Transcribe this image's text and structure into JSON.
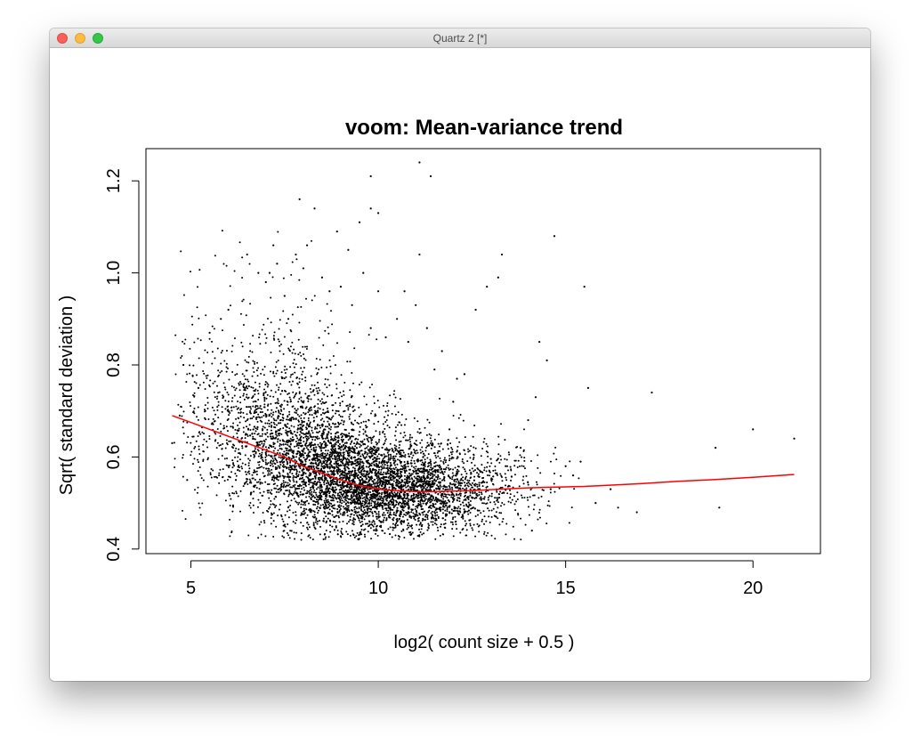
{
  "window": {
    "title": "Quartz 2 [*]",
    "buttons": [
      "close",
      "minimize",
      "zoom"
    ]
  },
  "colors": {
    "points": "#000000",
    "trend": "#ff0000",
    "frame": "#000000"
  },
  "chart_data": {
    "type": "scatter",
    "title": "voom: Mean-variance trend",
    "xlabel": "log2( count size + 0.5 )",
    "ylabel": "Sqrt( standard deviation )",
    "xlim": [
      3.8,
      21.8
    ],
    "ylim": [
      0.39,
      1.27
    ],
    "xticks": [
      5,
      10,
      15,
      20
    ],
    "yticks": [
      0.4,
      0.6,
      0.8,
      1.0,
      1.2
    ],
    "ytick_labels": [
      "0.4",
      "0.6",
      "0.8",
      "1.0",
      "1.2"
    ],
    "grid": false,
    "series": [
      {
        "kind": "points",
        "points": [
          [
            4.5,
            0.63
          ],
          [
            4.7,
            0.69
          ],
          [
            4.8,
            0.8
          ],
          [
            4.9,
            0.55
          ],
          [
            5.2,
            0.75
          ],
          [
            5.5,
            0.87
          ],
          [
            5.8,
            0.9
          ],
          [
            6.0,
            0.92
          ],
          [
            6.2,
            0.55
          ],
          [
            6.5,
            1.04
          ],
          [
            6.8,
            1.0
          ],
          [
            7.0,
            0.98
          ],
          [
            7.1,
            1.0
          ],
          [
            7.2,
            1.06
          ],
          [
            7.3,
            1.02
          ],
          [
            7.5,
            0.95
          ],
          [
            7.6,
            0.9
          ],
          [
            7.8,
            1.04
          ],
          [
            7.9,
            1.16
          ],
          [
            8.0,
            1.01
          ],
          [
            8.1,
            1.06
          ],
          [
            8.3,
            1.14
          ],
          [
            8.5,
            0.99
          ],
          [
            8.7,
            0.96
          ],
          [
            8.9,
            1.09
          ],
          [
            9.0,
            0.97
          ],
          [
            9.2,
            1.05
          ],
          [
            9.3,
            0.93
          ],
          [
            9.5,
            1.11
          ],
          [
            9.6,
            1.0
          ],
          [
            9.8,
            1.14
          ],
          [
            9.8,
            0.88
          ],
          [
            9.8,
            1.21
          ],
          [
            10.0,
            1.13
          ],
          [
            10.0,
            0.96
          ],
          [
            10.2,
            0.86
          ],
          [
            10.5,
            0.9
          ],
          [
            10.7,
            0.96
          ],
          [
            10.8,
            0.85
          ],
          [
            11.0,
            0.93
          ],
          [
            11.1,
            1.04
          ],
          [
            11.1,
            1.24
          ],
          [
            11.3,
            0.88
          ],
          [
            11.4,
            1.21
          ],
          [
            11.5,
            0.79
          ],
          [
            11.7,
            0.83
          ],
          [
            11.9,
            0.66
          ],
          [
            12.0,
            0.72
          ],
          [
            12.1,
            0.77
          ],
          [
            12.3,
            0.78
          ],
          [
            12.6,
            0.92
          ],
          [
            12.9,
            0.97
          ],
          [
            13.2,
            0.99
          ],
          [
            13.3,
            1.04
          ],
          [
            13.4,
            0.58
          ],
          [
            13.8,
            0.62
          ],
          [
            14.0,
            0.68
          ],
          [
            14.1,
            0.44
          ],
          [
            14.2,
            0.73
          ],
          [
            14.3,
            0.85
          ],
          [
            14.5,
            0.81
          ],
          [
            14.6,
            0.53
          ],
          [
            14.7,
            1.08
          ],
          [
            15.0,
            0.58
          ],
          [
            15.2,
            0.56
          ],
          [
            15.4,
            0.59
          ],
          [
            15.5,
            0.97
          ],
          [
            15.6,
            0.75
          ],
          [
            15.8,
            0.5
          ],
          [
            16.2,
            0.53
          ],
          [
            16.4,
            0.49
          ],
          [
            16.9,
            0.48
          ],
          [
            17.3,
            0.74
          ],
          [
            19.0,
            0.62
          ],
          [
            19.1,
            0.49
          ],
          [
            20.0,
            0.66
          ],
          [
            21.1,
            0.64
          ]
        ]
      },
      {
        "kind": "line",
        "x": [
          4.5,
          5.0,
          5.5,
          6.0,
          6.5,
          7.0,
          7.5,
          8.0,
          8.5,
          9.0,
          9.5,
          10.0,
          10.5,
          11.0,
          11.5,
          12.0,
          12.5,
          13.0,
          13.5,
          14.0,
          14.5,
          15.0,
          15.5,
          16.0,
          17.0,
          18.0,
          19.0,
          20.0,
          21.1
        ],
        "y": [
          0.69,
          0.675,
          0.66,
          0.645,
          0.63,
          0.615,
          0.6,
          0.58,
          0.565,
          0.55,
          0.538,
          0.53,
          0.527,
          0.525,
          0.525,
          0.526,
          0.527,
          0.529,
          0.531,
          0.533,
          0.534,
          0.535,
          0.536,
          0.538,
          0.542,
          0.547,
          0.551,
          0.556,
          0.562
        ]
      }
    ]
  }
}
